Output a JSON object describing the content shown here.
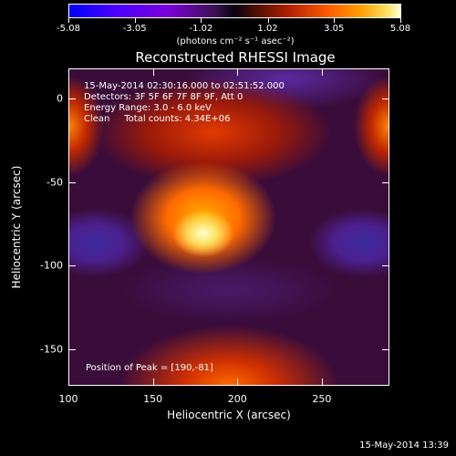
{
  "colorbar": {
    "tick_labels": [
      "-5.08",
      "-3.05",
      "-1.02",
      "1.02",
      "3.05",
      "5.08"
    ],
    "units": "(photons cm⁻² s⁻¹ asec⁻²)",
    "range": [
      -5.08,
      5.08
    ],
    "colormap": "blue-purple-black-red-orange-yellow-white"
  },
  "title": "Reconstructed RHESSI Image",
  "info": {
    "time_range": "15-May-2014 02:30:16.000 to 02:51:52.000",
    "detectors": "Detectors: 3F 5F 6F 7F 8F 9F, Att 0",
    "energy": "Energy Range: 3.0 - 6.0 keV",
    "clean": "Clean     Total counts: 4.34E+06"
  },
  "peak": "Position of Peak = [190,-81]",
  "axes": {
    "xlabel": "Heliocentric X (arcsec)",
    "ylabel": "Heliocentric Y (arcsec)",
    "xlim": [
      100,
      290
    ],
    "ylim": [
      -172,
      18
    ],
    "xticks": [
      "100",
      "150",
      "200",
      "250"
    ],
    "yticks": [
      "0",
      "-50",
      "-100",
      "-150"
    ]
  },
  "footer": "15-May-2014 13:39"
}
